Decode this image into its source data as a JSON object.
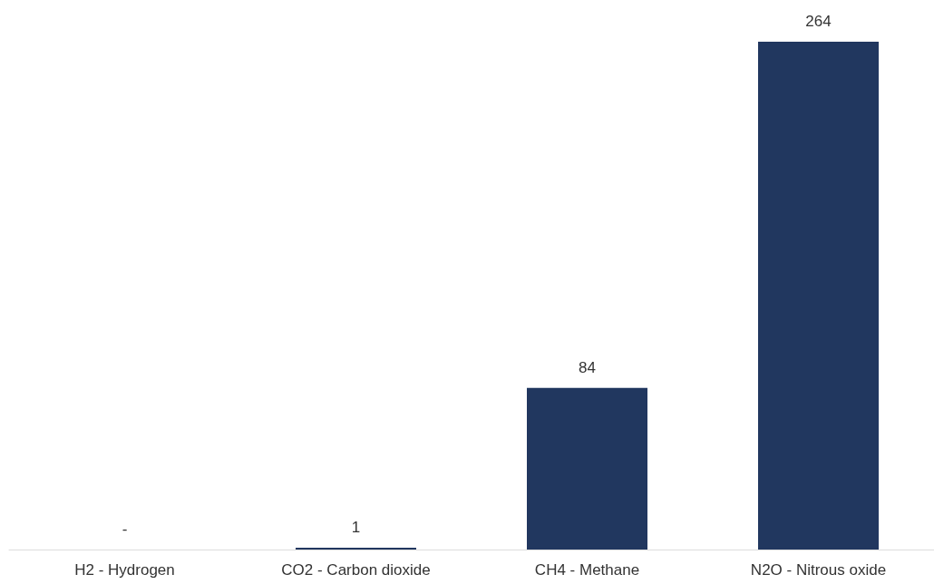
{
  "chart_data": {
    "type": "bar",
    "categories": [
      "H2 - Hydrogen",
      "CO2 - Carbon dioxide",
      "CH4 - Methane",
      "N2O - Nitrous oxide"
    ],
    "values": [
      0,
      1,
      84,
      264
    ],
    "value_labels": [
      "-",
      "1",
      "84",
      "264"
    ],
    "color": "#21375f"
  }
}
